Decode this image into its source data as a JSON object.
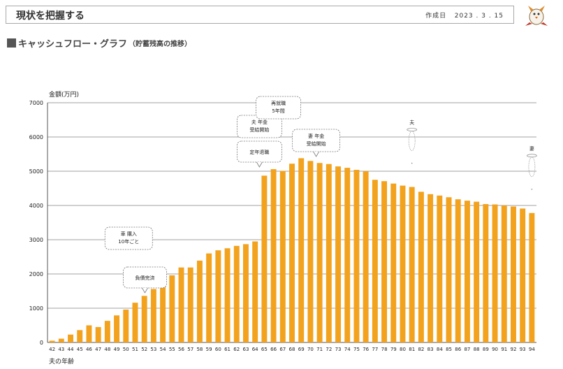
{
  "header": {
    "title": "現状を把握する",
    "date_label": "作成日",
    "date_value": "2023 . 3 . 15"
  },
  "section": {
    "title": "キャッシュフロー・グラフ",
    "subtitle": "（貯蓄残高の推移）"
  },
  "mascot_icon": "bird-mascot-icon",
  "chart_data": {
    "type": "bar",
    "ylabel": "金額(万円)",
    "xlabel": "夫の年齢",
    "ylim": [
      0,
      7000
    ],
    "yticks": [
      0,
      1000,
      2000,
      3000,
      4000,
      5000,
      6000,
      7000
    ],
    "grid": true,
    "bar_color": "#f2a21d",
    "categories": [
      "42",
      "43",
      "44",
      "45",
      "46",
      "47",
      "48",
      "49",
      "50",
      "51",
      "52",
      "53",
      "54",
      "55",
      "56",
      "57",
      "58",
      "59",
      "60",
      "61",
      "62",
      "63",
      "64",
      "65",
      "66",
      "67",
      "68",
      "69",
      "70",
      "71",
      "72",
      "73",
      "74",
      "75",
      "76",
      "77",
      "78",
      "79",
      "80",
      "81",
      "82",
      "83",
      "84",
      "85",
      "86",
      "87",
      "88",
      "89",
      "90",
      "91",
      "92",
      "93",
      "94"
    ],
    "values": [
      50,
      110,
      230,
      360,
      500,
      450,
      630,
      790,
      960,
      1160,
      1360,
      1560,
      1790,
      1960,
      2190,
      2190,
      2390,
      2600,
      2690,
      2750,
      2820,
      2870,
      2950,
      4870,
      5060,
      5010,
      5220,
      5380,
      5300,
      5240,
      5210,
      5140,
      5100,
      5040,
      5000,
      4750,
      4710,
      4640,
      4580,
      4540,
      4400,
      4330,
      4290,
      4240,
      4180,
      4140,
      4110,
      4040,
      4030,
      4000,
      3970,
      3910,
      3780
    ],
    "annotations": [
      {
        "text": [
          "車 購入",
          "10年ごと"
        ],
        "at": "50"
      },
      {
        "text": [
          "負債完済"
        ],
        "at": "51"
      },
      {
        "text": [
          "夫 年金",
          "受給開始"
        ],
        "at": "65"
      },
      {
        "text": [
          "定年退職"
        ],
        "at": "65"
      },
      {
        "text": [
          "再就職",
          "5年間"
        ],
        "at": "66"
      },
      {
        "text": [
          "妻 年金",
          "受給開始"
        ],
        "at": "71"
      }
    ],
    "markers": [
      {
        "label": "夫",
        "at": "81",
        "icon": "ghost-icon"
      },
      {
        "label": "妻",
        "at": "94",
        "icon": "ghost-icon"
      }
    ]
  }
}
